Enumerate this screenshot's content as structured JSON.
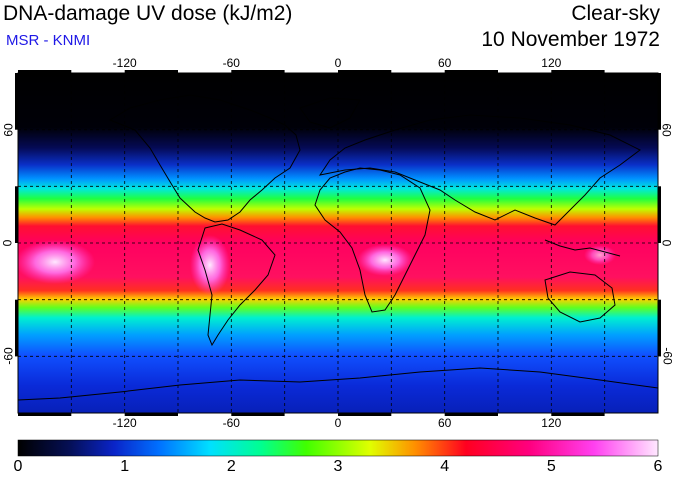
{
  "header": {
    "title": "DNA-damage UV dose (kJ/m2)",
    "source": "MSR - KNMI",
    "condition": "Clear-sky",
    "date": "10 November 1972"
  },
  "map": {
    "longitude_ticks": [
      "-120",
      "-60",
      "0",
      "60",
      "120"
    ],
    "latitude_ticks": [
      "60",
      "0",
      "-60"
    ],
    "gridlines": "dashed",
    "projection": "equirectangular"
  },
  "colorbar": {
    "labels": [
      "0",
      "1",
      "2",
      "3",
      "4",
      "5",
      "6"
    ],
    "min": 0,
    "max": 6,
    "colors": [
      "#000000",
      "#0a1a9a",
      "#0060ff",
      "#00e0ff",
      "#00ff40",
      "#ffff00",
      "#ff8000",
      "#ff0033",
      "#ff0090",
      "#ff60ff",
      "#ffe8ff"
    ]
  }
}
